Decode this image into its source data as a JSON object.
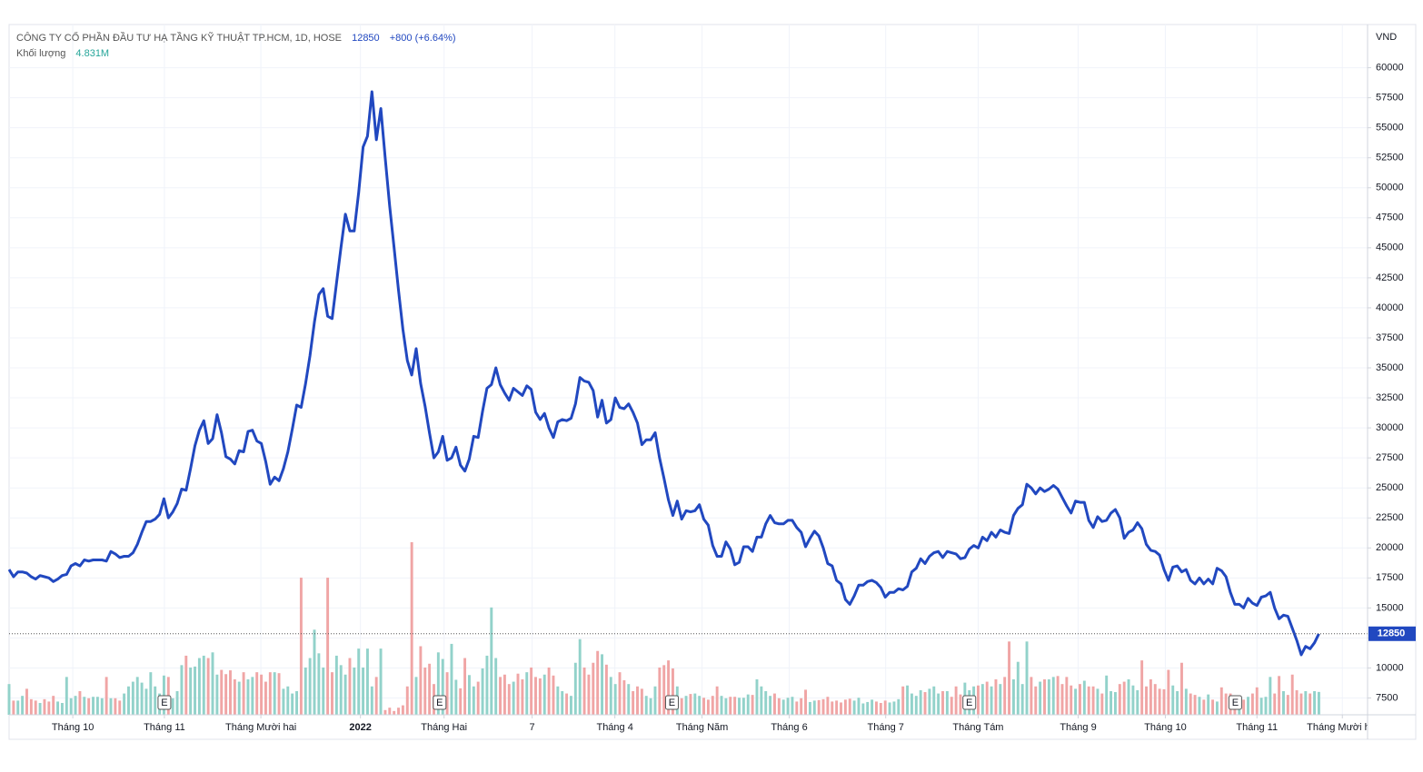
{
  "chart_data": {
    "type": "line",
    "title": "CÔNG TY CỔ PHẦN ĐẦU TƯ HẠ TẦNG KỸ THUẬT TP.HCM, 1D, HOSE",
    "change": "+800 (+6.64%)",
    "volume_name": "Khối lượng",
    "volume_label": "4.831M",
    "y_axis_label": "VND",
    "grid": true,
    "xlim": [
      0,
      307
    ],
    "ylim": [
      6100,
      63600
    ],
    "yticks": [
      7500,
      10000,
      12500,
      15000,
      17500,
      20000,
      22500,
      25000,
      27500,
      30000,
      32500,
      35000,
      37500,
      40000,
      42500,
      45000,
      47500,
      50000,
      52500,
      55000,
      57500,
      60000
    ],
    "xticks": [
      {
        "value": 14.4,
        "label": "Tháng 10"
      },
      {
        "value": 35.1,
        "label": "Tháng 11"
      },
      {
        "value": 56.9,
        "label": "Tháng Mười hai"
      },
      {
        "value": 79.4,
        "label": "2022"
      },
      {
        "value": 98.3,
        "label": "Tháng Hai"
      },
      {
        "value": 118.2,
        "label": "7"
      },
      {
        "value": 136.9,
        "label": "Tháng 4"
      },
      {
        "value": 156.6,
        "label": "Tháng Năm"
      },
      {
        "value": 176.3,
        "label": "Tháng 6"
      },
      {
        "value": 198.1,
        "label": "Tháng 7"
      },
      {
        "value": 219,
        "label": "Tháng Tám"
      },
      {
        "value": 241.6,
        "label": "Tháng 9"
      },
      {
        "value": 261.3,
        "label": "Tháng 10"
      },
      {
        "value": 282,
        "label": "Tháng 11"
      },
      {
        "value": 301.3,
        "label": "Tháng Mười hai"
      }
    ],
    "events": [
      {
        "x": 35.1,
        "label": "E"
      },
      {
        "x": 97.3,
        "label": "E"
      },
      {
        "x": 149.8,
        "label": "E"
      },
      {
        "x": 217,
        "label": "E"
      },
      {
        "x": 277.1,
        "label": "E"
      }
    ],
    "series": [
      {
        "color": "#2148c0",
        "values": [
          18200,
          17600,
          18000,
          18000,
          17900,
          17600,
          17400,
          17700,
          17600,
          17500,
          17200,
          17400,
          17700,
          17800,
          18500,
          18700,
          18500,
          19000,
          18900,
          19000,
          19000,
          19000,
          18900,
          19700,
          19500,
          19200,
          19300,
          19300,
          19600,
          20300,
          21300,
          22200,
          22200,
          22400,
          22800,
          24100,
          22500,
          23000,
          23700,
          24900,
          24800,
          26600,
          28500,
          29800,
          30600,
          28700,
          29100,
          31100,
          29600,
          27600,
          27400,
          27000,
          28100,
          28000,
          29700,
          29800,
          28900,
          28700,
          27200,
          25300,
          25900,
          25600,
          26600,
          28000,
          29900,
          31900,
          31700,
          33700,
          36000,
          38800,
          41100,
          41600,
          39300,
          39100,
          42100,
          45000,
          47800,
          46400,
          46400,
          49600,
          53400,
          54300,
          58000,
          54000,
          56600,
          52500,
          48500,
          45000,
          41500,
          38200,
          35600,
          34400,
          36600,
          33700,
          31800,
          29600,
          27500,
          28000,
          29300,
          27300,
          27500,
          28400,
          26900,
          26400,
          27400,
          29300,
          29200,
          31400,
          33300,
          33600,
          35000,
          33600,
          32900,
          32300,
          33300,
          33000,
          32700,
          33500,
          33200,
          31300,
          30700,
          31200,
          30000,
          29200,
          30500,
          30700,
          30600,
          30800,
          32000,
          34200,
          33900,
          33800,
          33100,
          30900,
          32300,
          30400,
          30700,
          32500,
          31700,
          31600,
          32000,
          31300,
          30400,
          28600,
          29000,
          29000,
          29600,
          27500,
          25800,
          24000,
          22700,
          23900,
          22400,
          23100,
          23000,
          23100,
          23600,
          22400,
          21900,
          20200,
          19300,
          19300,
          20500,
          19900,
          18600,
          18800,
          20100,
          20100,
          19700,
          20900,
          20900,
          22000,
          22700,
          22100,
          22000,
          22000,
          22300,
          22300,
          21700,
          21300,
          20100,
          20800,
          21400,
          21000,
          20000,
          18700,
          18500,
          17300,
          17000,
          15700,
          15300,
          16000,
          16900,
          16900,
          17200,
          17300,
          17100,
          16700,
          15900,
          16300,
          16300,
          16600,
          16500,
          16800,
          18000,
          18300,
          19100,
          18700,
          19300,
          19600,
          19700,
          19200,
          19700,
          19600,
          19500,
          19100,
          19200,
          19900,
          20200,
          20000,
          20900,
          20600,
          21300,
          20900,
          21500,
          21300,
          21200,
          22700,
          23300,
          23600,
          25300,
          25000,
          24500,
          25000,
          24700,
          24900,
          25200,
          24900,
          24200,
          23500,
          22900,
          23900,
          23800,
          23800,
          22300,
          21700,
          22600,
          22200,
          22300,
          22900,
          23200,
          22500,
          20800,
          21300,
          21500,
          22100,
          21600,
          20300,
          19800,
          19700,
          19400,
          18200,
          17300,
          18400,
          18500,
          18000,
          18200,
          17300,
          17000,
          17500,
          17000,
          17400,
          17000,
          18300,
          18100,
          17600,
          16300,
          15300,
          15300,
          15000,
          15800,
          15400,
          15200,
          15900,
          16000,
          16300,
          15000,
          14100,
          14400,
          14300,
          13300,
          12300,
          11100,
          11800,
          11600,
          12100,
          12850
        ]
      }
    ],
    "volume": {
      "up_color": "#92d2ca",
      "down_color": "#f0a5a5",
      "vlim": [
        0,
        146
      ],
      "values": [
        6.5,
        3,
        3,
        4,
        5.5,
        3.3,
        3,
        2.5,
        3.3,
        2.8,
        4,
        2.8,
        2.5,
        8,
        3.5,
        4,
        5,
        3.8,
        3.5,
        3.8,
        3.8,
        3.5,
        8,
        3.5,
        3.5,
        3,
        4.5,
        6,
        7,
        8,
        6.8,
        5.5,
        9,
        6,
        4.5,
        8.3,
        8,
        3.5,
        5,
        10.5,
        12.5,
        10,
        10.2,
        12,
        12.5,
        12,
        13.2,
        8.5,
        9.5,
        8.6,
        9.4,
        7.5,
        7,
        9,
        7.5,
        8,
        9,
        8.5,
        7,
        9,
        9,
        8.8,
        5.5,
        6,
        4.5,
        5,
        29,
        10,
        12,
        18,
        13,
        10,
        29,
        9,
        12.5,
        10.5,
        8.5,
        12,
        10,
        14,
        10,
        14,
        6,
        8,
        14,
        1,
        1.5,
        0.8,
        1.5,
        2,
        6,
        36.5,
        8,
        14.5,
        10,
        10.8,
        6.5,
        13.2,
        11.8,
        9,
        15,
        7.4,
        5.6,
        12,
        8.4,
        6,
        7,
        9.8,
        12.5,
        22.7,
        12,
        8,
        8.5,
        6.5,
        7,
        8.7,
        7.5,
        9,
        10,
        8,
        7.7,
        8.5,
        10,
        8.3,
        6,
        5,
        4.5,
        4,
        11,
        16,
        10,
        8.5,
        11,
        13.5,
        12.8,
        10.6,
        8,
        6.5,
        9,
        7.3,
        6.5,
        5,
        6,
        5.5,
        4,
        3.5,
        6,
        10,
        10.5,
        11.5,
        9.8,
        6,
        3.5,
        4,
        4.4,
        4.5,
        4,
        3.6,
        3.2,
        4,
        6,
        4,
        3.5,
        3.8,
        3.8,
        3.6,
        3.6,
        4.3,
        4.2,
        7.5,
        6,
        5,
        4,
        4.5,
        3.5,
        3.2,
        3.6,
        3.8,
        2.8,
        3.5,
        5.3,
        2.7,
        3,
        3.1,
        3.3,
        3.8,
        2.8,
        3,
        2.6,
        3.2,
        3.4,
        3,
        3.6,
        2.4,
        2.7,
        3.2,
        2.8,
        2.5,
        3,
        2.6,
        2.8,
        3.3,
        6,
        6.2,
        4.5,
        4,
        5.2,
        4.8,
        5.5,
        6,
        4.5,
        5,
        5,
        3.8,
        6,
        4.3,
        6.8,
        5.2,
        6,
        6.2,
        6.5,
        7,
        6,
        7.5,
        6.5,
        8,
        15.5,
        7.5,
        11.2,
        6.5,
        15.5,
        8,
        6,
        7,
        7.5,
        7.5,
        8,
        8.2,
        6.5,
        8,
        6.2,
        5.5,
        6.5,
        7.2,
        6,
        6,
        5.5,
        4.5,
        8.3,
        5,
        4.8,
        6.5,
        7,
        7.5,
        6.2,
        5.2,
        11.5,
        6,
        7.5,
        6.5,
        5.5,
        5.4,
        9.5,
        6.2,
        5,
        11,
        5.5,
        4.5,
        4.2,
        3.8,
        3.2,
        4.3,
        3.2,
        2.8,
        5.8,
        4.5,
        4.5,
        3,
        3.2,
        3.2,
        3.8,
        4.5,
        5.8,
        3.6,
        3.8,
        8,
        4.5,
        8.2,
        5,
        4.2,
        8.5,
        5.2,
        4.5,
        5,
        4.5,
        5,
        4.831
      ]
    }
  }
}
